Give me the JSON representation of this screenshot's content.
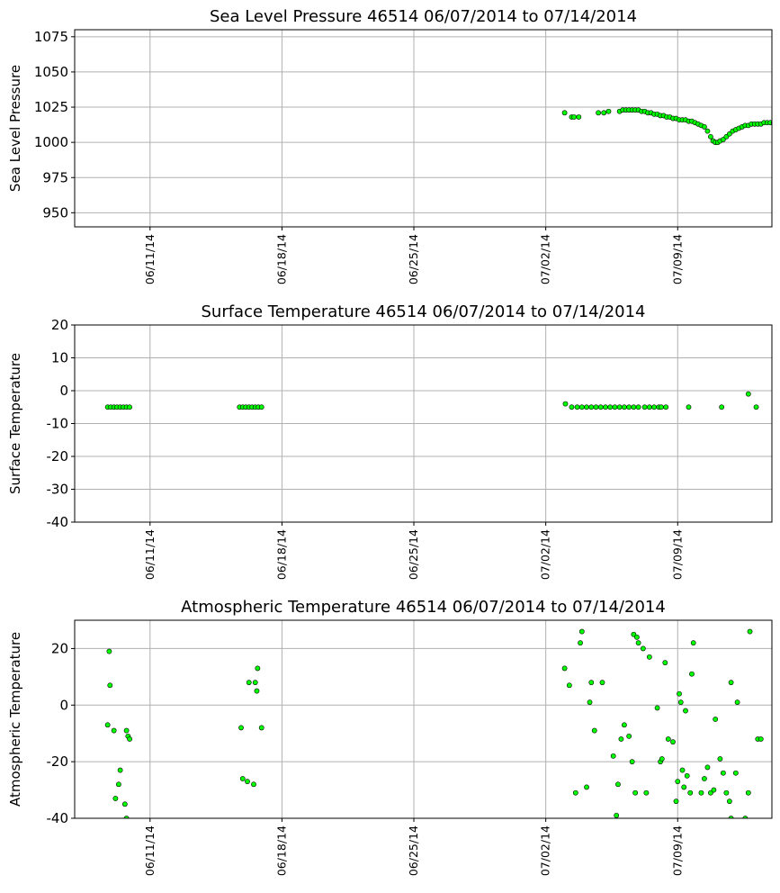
{
  "chart_data": [
    {
      "type": "scatter",
      "title": "Sea Level Pressure 46514  06/07/2014 to 07/14/2014",
      "ylabel": "Sea Level Pressure",
      "ylim": [
        940,
        1080
      ],
      "yticks": [
        950,
        975,
        1000,
        1025,
        1050,
        1075
      ],
      "xlim": [
        "06/07/2014 00:00",
        "07/14/2014 00:00"
      ],
      "xticks": [
        "06/11/14",
        "06/18/14",
        "06/25/14",
        "07/02/14",
        "07/09/14"
      ],
      "grid": true,
      "series": [
        {
          "color": "#00ff00",
          "points": [
            [
              "07/03/2014 00:00",
              1021
            ],
            [
              "07/03/2014 09:00",
              1018
            ],
            [
              "07/03/2014 12:00",
              1018
            ],
            [
              "07/03/2014 18:00",
              1018
            ],
            [
              "07/04/2014 19:00",
              1021
            ],
            [
              "07/05/2014 02:00",
              1021
            ],
            [
              "07/05/2014 08:00",
              1022
            ],
            [
              "07/05/2014 22:00",
              1022
            ],
            [
              "07/06/2014 02:00",
              1023
            ],
            [
              "07/06/2014 06:00",
              1023
            ],
            [
              "07/06/2014 10:00",
              1023
            ],
            [
              "07/06/2014 14:00",
              1023
            ],
            [
              "07/06/2014 18:00",
              1023
            ],
            [
              "07/06/2014 22:00",
              1023
            ],
            [
              "07/07/2014 02:00",
              1022
            ],
            [
              "07/07/2014 06:00",
              1022
            ],
            [
              "07/07/2014 10:00",
              1021
            ],
            [
              "07/07/2014 14:00",
              1021
            ],
            [
              "07/07/2014 18:00",
              1020
            ],
            [
              "07/07/2014 22:00",
              1020
            ],
            [
              "07/08/2014 02:00",
              1019
            ],
            [
              "07/08/2014 06:00",
              1019
            ],
            [
              "07/08/2014 10:00",
              1018
            ],
            [
              "07/08/2014 14:00",
              1018
            ],
            [
              "07/08/2014 18:00",
              1017
            ],
            [
              "07/08/2014 22:00",
              1017
            ],
            [
              "07/09/2014 02:00",
              1016
            ],
            [
              "07/09/2014 06:00",
              1016
            ],
            [
              "07/09/2014 10:00",
              1016
            ],
            [
              "07/09/2014 14:00",
              1015
            ],
            [
              "07/09/2014 18:00",
              1015
            ],
            [
              "07/09/2014 22:00",
              1014
            ],
            [
              "07/10/2014 02:00",
              1013
            ],
            [
              "07/10/2014 06:00",
              1012
            ],
            [
              "07/10/2014 10:00",
              1011
            ],
            [
              "07/10/2014 14:00",
              1008
            ],
            [
              "07/10/2014 18:00",
              1004
            ],
            [
              "07/10/2014 21:00",
              1001
            ],
            [
              "07/11/2014 00:00",
              1000
            ],
            [
              "07/11/2014 03:00",
              1000
            ],
            [
              "07/11/2014 06:00",
              1001
            ],
            [
              "07/11/2014 10:00",
              1002
            ],
            [
              "07/11/2014 14:00",
              1004
            ],
            [
              "07/11/2014 18:00",
              1006
            ],
            [
              "07/11/2014 22:00",
              1008
            ],
            [
              "07/12/2014 02:00",
              1009
            ],
            [
              "07/12/2014 06:00",
              1010
            ],
            [
              "07/12/2014 10:00",
              1011
            ],
            [
              "07/12/2014 14:00",
              1012
            ],
            [
              "07/12/2014 18:00",
              1012
            ],
            [
              "07/12/2014 22:00",
              1013
            ],
            [
              "07/13/2014 02:00",
              1013
            ],
            [
              "07/13/2014 06:00",
              1013
            ],
            [
              "07/13/2014 10:00",
              1013
            ],
            [
              "07/13/2014 14:00",
              1014
            ],
            [
              "07/13/2014 18:00",
              1014
            ],
            [
              "07/13/2014 22:00",
              1014
            ],
            [
              "07/14/2014 02:00",
              1014
            ],
            [
              "07/14/2014 06:00",
              1015
            ]
          ]
        }
      ]
    },
    {
      "type": "scatter",
      "title": "Surface Temperature 46514  06/07/2014 to 07/14/2014",
      "ylabel": "Surface Temperature",
      "ylim": [
        -40,
        20
      ],
      "yticks": [
        -40,
        -30,
        -20,
        -10,
        0,
        10,
        20
      ],
      "xlim": [
        "06/07/2014 00:00",
        "07/14/2014 00:00"
      ],
      "xticks": [
        "06/11/14",
        "06/18/14",
        "06/25/14",
        "07/02/14",
        "07/09/14"
      ],
      "grid": true,
      "series": [
        {
          "color": "#00ff00",
          "points": [
            [
              "06/08/2014 18:00",
              -5
            ],
            [
              "06/08/2014 22:00",
              -5
            ],
            [
              "06/09/2014 02:00",
              -5
            ],
            [
              "06/09/2014 06:00",
              -5
            ],
            [
              "06/09/2014 10:00",
              -5
            ],
            [
              "06/09/2014 14:00",
              -5
            ],
            [
              "06/09/2014 18:00",
              -5
            ],
            [
              "06/09/2014 22:00",
              -5
            ],
            [
              "06/15/2014 18:00",
              -5
            ],
            [
              "06/15/2014 22:00",
              -5
            ],
            [
              "06/16/2014 02:00",
              -5
            ],
            [
              "06/16/2014 06:00",
              -5
            ],
            [
              "06/16/2014 10:00",
              -5
            ],
            [
              "06/16/2014 14:00",
              -5
            ],
            [
              "06/16/2014 18:00",
              -5
            ],
            [
              "06/16/2014 22:00",
              -5
            ],
            [
              "07/03/2014 01:00",
              -4
            ],
            [
              "07/03/2014 09:00",
              -5
            ],
            [
              "07/03/2014 16:00",
              -5
            ],
            [
              "07/03/2014 22:00",
              -5
            ],
            [
              "07/04/2014 04:00",
              -5
            ],
            [
              "07/04/2014 10:00",
              -5
            ],
            [
              "07/04/2014 16:00",
              -5
            ],
            [
              "07/04/2014 22:00",
              -5
            ],
            [
              "07/05/2014 04:00",
              -5
            ],
            [
              "07/05/2014 10:00",
              -5
            ],
            [
              "07/05/2014 16:00",
              -5
            ],
            [
              "07/05/2014 22:00",
              -5
            ],
            [
              "07/06/2014 04:00",
              -5
            ],
            [
              "07/06/2014 10:00",
              -5
            ],
            [
              "07/06/2014 16:00",
              -5
            ],
            [
              "07/06/2014 22:00",
              -5
            ],
            [
              "07/07/2014 06:00",
              -5
            ],
            [
              "07/07/2014 12:00",
              -5
            ],
            [
              "07/07/2014 18:00",
              -5
            ],
            [
              "07/08/2014 00:00",
              -5
            ],
            [
              "07/08/2014 03:00",
              -5
            ],
            [
              "07/08/2014 09:00",
              -5
            ],
            [
              "07/09/2014 14:00",
              -5
            ],
            [
              "07/11/2014 08:00",
              -5
            ],
            [
              "07/12/2014 18:00",
              -1
            ],
            [
              "07/13/2014 04:00",
              -5
            ]
          ]
        }
      ]
    },
    {
      "type": "scatter",
      "title": "Atmospheric Temperature 46514  06/07/2014 to 07/14/2014",
      "ylabel": "Atmospheric Temperature",
      "ylim": [
        -40,
        30
      ],
      "yticks": [
        -40,
        -20,
        0,
        20
      ],
      "xlim": [
        "06/07/2014 00:00",
        "07/14/2014 00:00"
      ],
      "xticks": [
        "06/11/14",
        "06/18/14",
        "06/25/14",
        "07/02/14",
        "07/09/14"
      ],
      "grid": true,
      "series": [
        {
          "color": "#00ff00",
          "points": [
            [
              "06/08/2014 18:00",
              -7
            ],
            [
              "06/08/2014 20:00",
              19
            ],
            [
              "06/08/2014 21:00",
              7
            ],
            [
              "06/09/2014 02:00",
              -9
            ],
            [
              "06/09/2014 04:00",
              -33
            ],
            [
              "06/09/2014 08:00",
              -28
            ],
            [
              "06/09/2014 10:00",
              -23
            ],
            [
              "06/09/2014 16:00",
              -35
            ],
            [
              "06/09/2014 18:00",
              -9
            ],
            [
              "06/09/2014 20:00",
              -11
            ],
            [
              "06/09/2014 22:00",
              -12
            ],
            [
              "06/09/2014 18:00",
              -40
            ],
            [
              "06/15/2014 20:00",
              -8
            ],
            [
              "06/15/2014 22:00",
              -26
            ],
            [
              "06/16/2014 04:00",
              -27
            ],
            [
              "06/16/2014 06:00",
              8
            ],
            [
              "06/16/2014 12:00",
              -28
            ],
            [
              "06/16/2014 14:00",
              8
            ],
            [
              "06/16/2014 16:00",
              5
            ],
            [
              "06/16/2014 17:00",
              13
            ],
            [
              "06/16/2014 22:00",
              -8
            ],
            [
              "07/03/2014 00:00",
              13
            ],
            [
              "07/03/2014 06:00",
              7
            ],
            [
              "07/03/2014 14:00",
              -31
            ],
            [
              "07/03/2014 20:00",
              22
            ],
            [
              "07/03/2014 22:00",
              26
            ],
            [
              "07/04/2014 04:00",
              -29
            ],
            [
              "07/04/2014 08:00",
              1
            ],
            [
              "07/04/2014 10:00",
              8
            ],
            [
              "07/04/2014 14:00",
              -9
            ],
            [
              "07/05/2014 00:00",
              8
            ],
            [
              "07/05/2014 14:00",
              -18
            ],
            [
              "07/05/2014 18:00",
              -39
            ],
            [
              "07/05/2014 20:00",
              -28
            ],
            [
              "07/06/2014 00:00",
              -12
            ],
            [
              "07/06/2014 04:00",
              -7
            ],
            [
              "07/06/2014 10:00",
              -11
            ],
            [
              "07/06/2014 14:00",
              -20
            ],
            [
              "07/06/2014 16:00",
              25
            ],
            [
              "07/06/2014 18:00",
              -31
            ],
            [
              "07/06/2014 20:00",
              24
            ],
            [
              "07/06/2014 22:00",
              22
            ],
            [
              "07/07/2014 04:00",
              20
            ],
            [
              "07/07/2014 08:00",
              -31
            ],
            [
              "07/07/2014 12:00",
              17
            ],
            [
              "07/07/2014 22:00",
              -1
            ],
            [
              "07/08/2014 02:00",
              -20
            ],
            [
              "07/08/2014 04:00",
              -19
            ],
            [
              "07/08/2014 08:00",
              15
            ],
            [
              "07/08/2014 12:00",
              -12
            ],
            [
              "07/08/2014 18:00",
              -13
            ],
            [
              "07/08/2014 22:00",
              -34
            ],
            [
              "07/09/2014 00:00",
              -27
            ],
            [
              "07/09/2014 02:00",
              4
            ],
            [
              "07/09/2014 04:00",
              1
            ],
            [
              "07/09/2014 06:00",
              -23
            ],
            [
              "07/09/2014 08:00",
              -29
            ],
            [
              "07/09/2014 10:00",
              -2
            ],
            [
              "07/09/2014 12:00",
              -25
            ],
            [
              "07/09/2014 16:00",
              -31
            ],
            [
              "07/09/2014 18:00",
              11
            ],
            [
              "07/09/2014 20:00",
              22
            ],
            [
              "07/10/2014 06:00",
              -31
            ],
            [
              "07/10/2014 10:00",
              -26
            ],
            [
              "07/10/2014 14:00",
              -22
            ],
            [
              "07/10/2014 18:00",
              -31
            ],
            [
              "07/10/2014 22:00",
              -30
            ],
            [
              "07/11/2014 00:00",
              -5
            ],
            [
              "07/11/2014 06:00",
              -19
            ],
            [
              "07/11/2014 10:00",
              -24
            ],
            [
              "07/11/2014 14:00",
              -31
            ],
            [
              "07/11/2014 18:00",
              -34
            ],
            [
              "07/11/2014 20:00",
              8
            ],
            [
              "07/12/2014 02:00",
              -24
            ],
            [
              "07/12/2014 04:00",
              1
            ],
            [
              "07/12/2014 18:00",
              -31
            ],
            [
              "07/12/2014 20:00",
              26
            ],
            [
              "07/13/2014 06:00",
              -12
            ],
            [
              "07/13/2014 10:00",
              -12
            ],
            [
              "07/11/2014 20:00",
              -40
            ],
            [
              "07/12/2014 14:00",
              -40
            ]
          ]
        }
      ]
    }
  ]
}
